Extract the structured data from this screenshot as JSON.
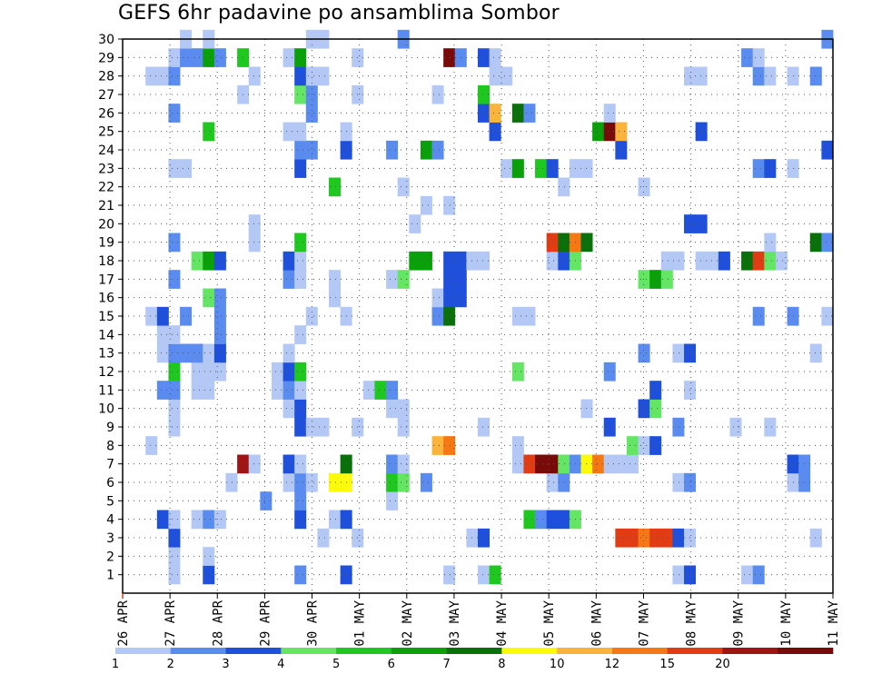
{
  "chart_data": {
    "type": "heatmap",
    "title": "GEFS 6hr padavine po ansamblima Sombor",
    "xlabel": "",
    "ylabel": "",
    "x_tick_labels": [
      "26 APR",
      "27 APR",
      "28 APR",
      "29 APR",
      "30 APR",
      "01 MAY",
      "02 MAY",
      "03 MAY",
      "04 MAY",
      "05 MAY",
      "06 MAY",
      "07 MAY",
      "08 MAY",
      "09 MAY",
      "10 MAY",
      "11 MAY"
    ],
    "y_tick_labels": [
      "1",
      "2",
      "3",
      "4",
      "5",
      "6",
      "7",
      "8",
      "9",
      "10",
      "11",
      "12",
      "13",
      "14",
      "15",
      "16",
      "17",
      "18",
      "19",
      "20",
      "21",
      "22",
      "23",
      "24",
      "25",
      "26",
      "27",
      "28",
      "29",
      "30"
    ],
    "x_range_steps": [
      0,
      61
    ],
    "y_range_members": [
      0,
      30
    ],
    "grid": true,
    "colorbar": {
      "labels": [
        "1",
        "2",
        "3",
        "4",
        "5",
        "6",
        "7",
        "8",
        "10",
        "12",
        "15",
        "20"
      ],
      "colors": [
        "#b4c8f5",
        "#5a8cf0",
        "#1e50dc",
        "#64e664",
        "#1ec81e",
        "#0aa00a",
        "#0a700a",
        "#fafa0a",
        "#fab43c",
        "#f57814",
        "#e13c14",
        "#a01414",
        "#780a0a"
      ]
    },
    "note_units": "cells: x = 6-hour step index from 26 APR 00Z, y = ensemble member, v = precipitation color class (1-13)",
    "cells": [
      [
        4,
        1,
        1
      ],
      [
        4,
        2,
        1
      ],
      [
        7,
        1,
        3
      ],
      [
        7,
        2,
        1
      ],
      [
        15,
        1,
        2
      ],
      [
        19,
        1,
        3
      ],
      [
        28,
        1,
        1
      ],
      [
        31,
        1,
        1
      ],
      [
        32,
        1,
        5
      ],
      [
        48,
        1,
        1
      ],
      [
        49,
        1,
        3
      ],
      [
        54,
        1,
        1
      ],
      [
        55,
        1,
        2
      ],
      [
        4,
        3,
        3
      ],
      [
        17,
        3,
        1
      ],
      [
        20,
        3,
        1
      ],
      [
        30,
        3,
        1
      ],
      [
        31,
        3,
        3
      ],
      [
        43,
        3,
        11
      ],
      [
        44,
        3,
        11
      ],
      [
        45,
        3,
        10
      ],
      [
        46,
        3,
        11
      ],
      [
        47,
        3,
        11
      ],
      [
        48,
        3,
        3
      ],
      [
        49,
        3,
        1
      ],
      [
        60,
        3,
        1
      ],
      [
        3,
        4,
        3
      ],
      [
        4,
        4,
        1
      ],
      [
        6,
        4,
        1
      ],
      [
        7,
        4,
        2
      ],
      [
        8,
        4,
        1
      ],
      [
        15,
        4,
        3
      ],
      [
        18,
        4,
        1
      ],
      [
        19,
        4,
        3
      ],
      [
        35,
        4,
        5
      ],
      [
        36,
        4,
        2
      ],
      [
        37,
        4,
        3
      ],
      [
        38,
        4,
        3
      ],
      [
        39,
        4,
        4
      ],
      [
        12,
        5,
        2
      ],
      [
        15,
        5,
        2
      ],
      [
        23,
        5,
        1
      ],
      [
        9,
        6,
        1
      ],
      [
        14,
        6,
        1
      ],
      [
        15,
        6,
        2
      ],
      [
        16,
        6,
        1
      ],
      [
        18,
        6,
        8
      ],
      [
        19,
        6,
        8
      ],
      [
        23,
        6,
        5
      ],
      [
        24,
        6,
        4
      ],
      [
        26,
        6,
        2
      ],
      [
        37,
        6,
        1
      ],
      [
        38,
        6,
        2
      ],
      [
        48,
        6,
        1
      ],
      [
        49,
        6,
        2
      ],
      [
        58,
        6,
        1
      ],
      [
        59,
        6,
        2
      ],
      [
        10,
        7,
        12
      ],
      [
        11,
        7,
        1
      ],
      [
        14,
        7,
        3
      ],
      [
        15,
        7,
        1
      ],
      [
        19,
        7,
        7
      ],
      [
        23,
        7,
        2
      ],
      [
        24,
        7,
        1
      ],
      [
        34,
        7,
        1
      ],
      [
        35,
        7,
        11
      ],
      [
        36,
        7,
        13
      ],
      [
        37,
        7,
        13
      ],
      [
        38,
        7,
        4
      ],
      [
        39,
        7,
        2
      ],
      [
        40,
        7,
        8
      ],
      [
        41,
        7,
        10
      ],
      [
        42,
        7,
        1
      ],
      [
        43,
        7,
        1
      ],
      [
        44,
        7,
        1
      ],
      [
        58,
        7,
        3
      ],
      [
        59,
        7,
        2
      ],
      [
        2,
        8,
        1
      ],
      [
        27,
        8,
        9
      ],
      [
        28,
        8,
        10
      ],
      [
        34,
        8,
        1
      ],
      [
        44,
        8,
        4
      ],
      [
        45,
        8,
        1
      ],
      [
        46,
        8,
        3
      ],
      [
        4,
        9,
        1
      ],
      [
        15,
        9,
        3
      ],
      [
        16,
        9,
        1
      ],
      [
        17,
        9,
        1
      ],
      [
        20,
        9,
        1
      ],
      [
        24,
        9,
        1
      ],
      [
        31,
        9,
        1
      ],
      [
        42,
        9,
        3
      ],
      [
        48,
        9,
        2
      ],
      [
        53,
        9,
        1
      ],
      [
        56,
        9,
        1
      ],
      [
        4,
        10,
        1
      ],
      [
        14,
        10,
        1
      ],
      [
        15,
        10,
        3
      ],
      [
        23,
        10,
        1
      ],
      [
        24,
        10,
        1
      ],
      [
        40,
        10,
        1
      ],
      [
        45,
        10,
        3
      ],
      [
        46,
        10,
        4
      ],
      [
        3,
        11,
        2
      ],
      [
        4,
        11,
        2
      ],
      [
        6,
        11,
        1
      ],
      [
        7,
        11,
        1
      ],
      [
        13,
        11,
        1
      ],
      [
        14,
        11,
        2
      ],
      [
        15,
        11,
        1
      ],
      [
        21,
        11,
        1
      ],
      [
        22,
        11,
        5
      ],
      [
        23,
        11,
        2
      ],
      [
        46,
        11,
        3
      ],
      [
        49,
        11,
        1
      ],
      [
        4,
        12,
        5
      ],
      [
        6,
        12,
        1
      ],
      [
        7,
        12,
        1
      ],
      [
        8,
        12,
        1
      ],
      [
        13,
        12,
        1
      ],
      [
        14,
        12,
        3
      ],
      [
        15,
        12,
        5
      ],
      [
        34,
        12,
        4
      ],
      [
        42,
        12,
        2
      ],
      [
        3,
        13,
        1
      ],
      [
        4,
        13,
        2
      ],
      [
        5,
        13,
        2
      ],
      [
        6,
        13,
        2
      ],
      [
        7,
        13,
        1
      ],
      [
        8,
        13,
        3
      ],
      [
        14,
        13,
        1
      ],
      [
        45,
        13,
        2
      ],
      [
        48,
        13,
        1
      ],
      [
        49,
        13,
        3
      ],
      [
        60,
        13,
        1
      ],
      [
        3,
        14,
        1
      ],
      [
        4,
        14,
        1
      ],
      [
        8,
        14,
        2
      ],
      [
        15,
        14,
        1
      ],
      [
        2,
        15,
        1
      ],
      [
        3,
        15,
        3
      ],
      [
        5,
        15,
        2
      ],
      [
        8,
        15,
        2
      ],
      [
        16,
        15,
        1
      ],
      [
        19,
        15,
        1
      ],
      [
        27,
        15,
        2
      ],
      [
        28,
        15,
        7
      ],
      [
        34,
        15,
        1
      ],
      [
        35,
        15,
        1
      ],
      [
        55,
        15,
        2
      ],
      [
        58,
        15,
        2
      ],
      [
        61,
        15,
        1
      ],
      [
        7,
        16,
        4
      ],
      [
        8,
        16,
        2
      ],
      [
        18,
        16,
        1
      ],
      [
        27,
        16,
        1
      ],
      [
        28,
        16,
        3
      ],
      [
        29,
        16,
        3
      ],
      [
        4,
        17,
        2
      ],
      [
        14,
        17,
        2
      ],
      [
        15,
        17,
        1
      ],
      [
        18,
        17,
        1
      ],
      [
        23,
        17,
        1
      ],
      [
        24,
        17,
        4
      ],
      [
        28,
        17,
        3
      ],
      [
        29,
        17,
        3
      ],
      [
        45,
        17,
        4
      ],
      [
        46,
        17,
        6
      ],
      [
        47,
        17,
        4
      ],
      [
        6,
        18,
        4
      ],
      [
        7,
        18,
        6
      ],
      [
        8,
        18,
        3
      ],
      [
        14,
        18,
        3
      ],
      [
        15,
        18,
        1
      ],
      [
        25,
        18,
        6
      ],
      [
        26,
        18,
        6
      ],
      [
        28,
        18,
        3
      ],
      [
        29,
        18,
        3
      ],
      [
        30,
        18,
        1
      ],
      [
        31,
        18,
        1
      ],
      [
        37,
        18,
        1
      ],
      [
        38,
        18,
        3
      ],
      [
        39,
        18,
        4
      ],
      [
        47,
        18,
        1
      ],
      [
        48,
        18,
        1
      ],
      [
        50,
        18,
        1
      ],
      [
        51,
        18,
        1
      ],
      [
        52,
        18,
        3
      ],
      [
        54,
        18,
        7
      ],
      [
        55,
        18,
        11
      ],
      [
        56,
        18,
        4
      ],
      [
        57,
        18,
        1
      ],
      [
        4,
        19,
        2
      ],
      [
        11,
        19,
        1
      ],
      [
        15,
        19,
        5
      ],
      [
        37,
        19,
        11
      ],
      [
        38,
        19,
        7
      ],
      [
        39,
        19,
        10
      ],
      [
        40,
        19,
        7
      ],
      [
        56,
        19,
        1
      ],
      [
        60,
        19,
        7
      ],
      [
        61,
        19,
        2
      ],
      [
        11,
        20,
        1
      ],
      [
        25,
        20,
        1
      ],
      [
        49,
        20,
        3
      ],
      [
        50,
        20,
        3
      ],
      [
        26,
        21,
        1
      ],
      [
        28,
        21,
        1
      ],
      [
        18,
        22,
        5
      ],
      [
        24,
        22,
        1
      ],
      [
        38,
        22,
        1
      ],
      [
        45,
        22,
        1
      ],
      [
        4,
        23,
        1
      ],
      [
        5,
        23,
        1
      ],
      [
        15,
        23,
        3
      ],
      [
        33,
        23,
        1
      ],
      [
        34,
        23,
        6
      ],
      [
        36,
        23,
        5
      ],
      [
        37,
        23,
        3
      ],
      [
        39,
        23,
        1
      ],
      [
        40,
        23,
        1
      ],
      [
        55,
        23,
        2
      ],
      [
        56,
        23,
        3
      ],
      [
        58,
        23,
        1
      ],
      [
        15,
        24,
        2
      ],
      [
        16,
        24,
        2
      ],
      [
        19,
        24,
        3
      ],
      [
        23,
        24,
        2
      ],
      [
        26,
        24,
        6
      ],
      [
        27,
        24,
        2
      ],
      [
        43,
        24,
        3
      ],
      [
        61,
        24,
        3
      ],
      [
        7,
        25,
        5
      ],
      [
        14,
        25,
        1
      ],
      [
        15,
        25,
        1
      ],
      [
        19,
        25,
        1
      ],
      [
        32,
        25,
        3
      ],
      [
        41,
        25,
        6
      ],
      [
        42,
        25,
        13
      ],
      [
        43,
        25,
        9
      ],
      [
        50,
        25,
        3
      ],
      [
        4,
        26,
        2
      ],
      [
        16,
        26,
        2
      ],
      [
        31,
        26,
        3
      ],
      [
        32,
        26,
        9
      ],
      [
        34,
        26,
        7
      ],
      [
        35,
        26,
        2
      ],
      [
        42,
        26,
        1
      ],
      [
        10,
        27,
        1
      ],
      [
        15,
        27,
        4
      ],
      [
        16,
        27,
        2
      ],
      [
        20,
        27,
        1
      ],
      [
        27,
        27,
        1
      ],
      [
        31,
        27,
        5
      ],
      [
        2,
        28,
        1
      ],
      [
        3,
        28,
        1
      ],
      [
        4,
        28,
        2
      ],
      [
        11,
        28,
        1
      ],
      [
        15,
        28,
        3
      ],
      [
        16,
        28,
        1
      ],
      [
        17,
        28,
        1
      ],
      [
        32,
        28,
        1
      ],
      [
        33,
        28,
        1
      ],
      [
        49,
        28,
        1
      ],
      [
        50,
        28,
        1
      ],
      [
        55,
        28,
        2
      ],
      [
        56,
        28,
        1
      ],
      [
        58,
        28,
        1
      ],
      [
        60,
        28,
        2
      ],
      [
        4,
        29,
        1
      ],
      [
        5,
        29,
        2
      ],
      [
        6,
        29,
        2
      ],
      [
        7,
        29,
        6
      ],
      [
        8,
        29,
        2
      ],
      [
        10,
        29,
        5
      ],
      [
        14,
        29,
        1
      ],
      [
        15,
        29,
        6
      ],
      [
        20,
        29,
        1
      ],
      [
        28,
        29,
        13
      ],
      [
        29,
        29,
        2
      ],
      [
        31,
        29,
        3
      ],
      [
        32,
        29,
        1
      ],
      [
        54,
        29,
        2
      ],
      [
        55,
        29,
        1
      ],
      [
        5,
        30,
        1
      ],
      [
        7,
        30,
        1
      ],
      [
        16,
        30,
        1
      ],
      [
        17,
        30,
        1
      ],
      [
        24,
        30,
        2
      ],
      [
        61,
        30,
        2
      ]
    ]
  }
}
